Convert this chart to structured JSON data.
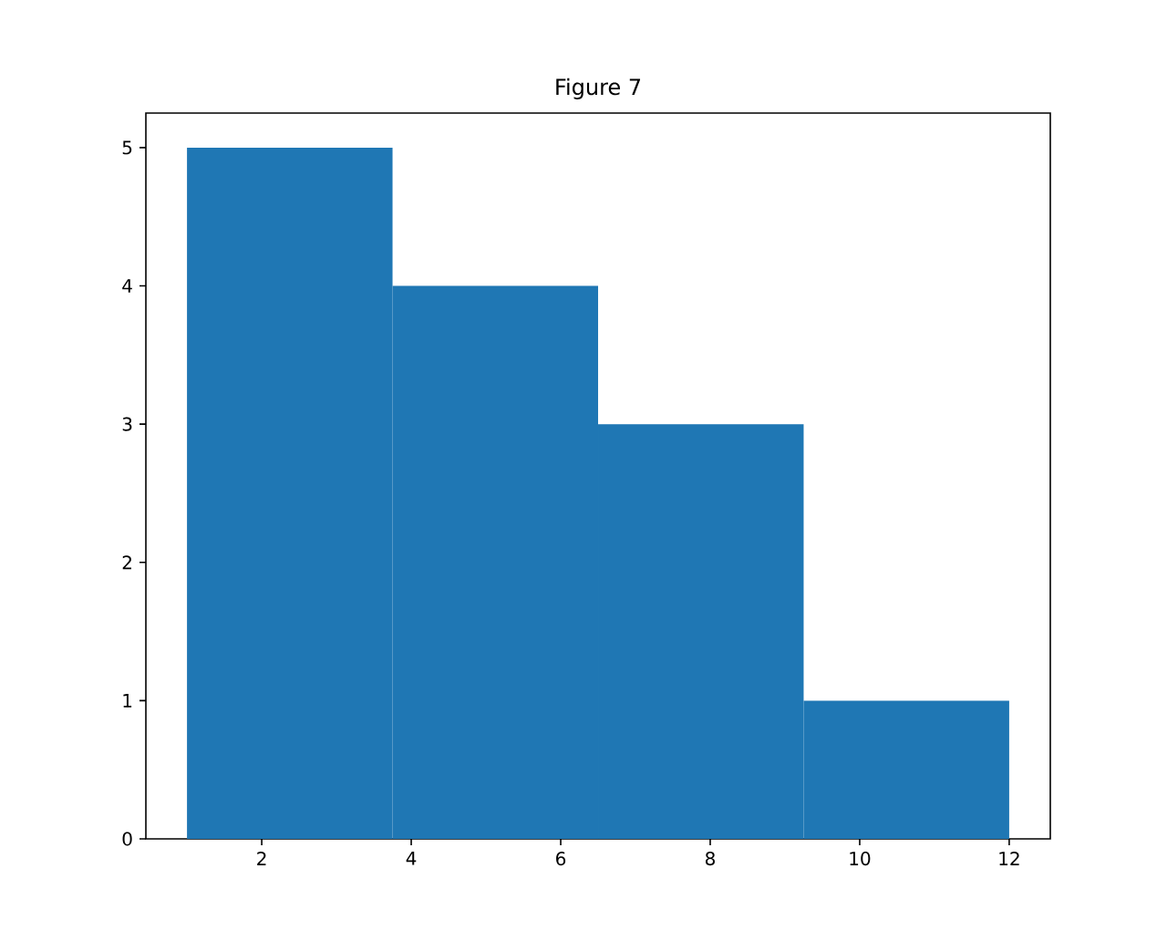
{
  "chart_data": {
    "type": "histogram",
    "title": "Figure 7",
    "bins": [
      1,
      3.75,
      6.5,
      9.25,
      12
    ],
    "values": [
      5,
      4,
      3,
      1
    ],
    "color": "#1f77b4",
    "xlim": [
      0.45,
      12.55
    ],
    "ylim": [
      0,
      5.25
    ],
    "xticks": [
      2,
      4,
      6,
      8,
      10,
      12
    ],
    "yticks": [
      0,
      1,
      2,
      3,
      4,
      5
    ],
    "grid": false
  }
}
